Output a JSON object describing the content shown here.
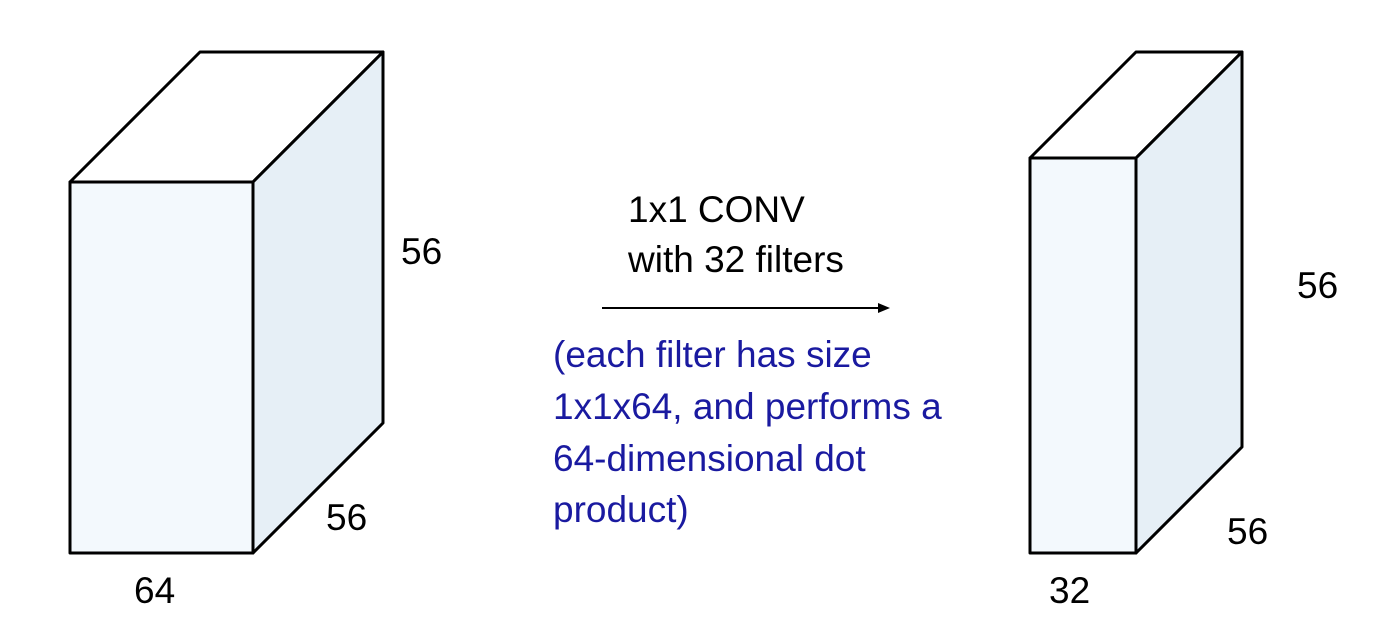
{
  "input_volume": {
    "depth_label": "64",
    "width_label": "56",
    "height_label": "56"
  },
  "output_volume": {
    "depth_label": "32",
    "width_label": "56",
    "height_label": "56"
  },
  "operation": {
    "line1": "1x1 CONV",
    "line2": "with 32 filters"
  },
  "explanation": {
    "lines": [
      "(each filter has size",
      "1x1x64, and performs a",
      "64-dimensional dot",
      "product)"
    ]
  },
  "colors": {
    "stroke": "#000000",
    "front_face": "#f3f9fd",
    "top_face": "#ffffff",
    "side_face": "#e6eff6",
    "explanation_text": "#1a1aa0"
  }
}
